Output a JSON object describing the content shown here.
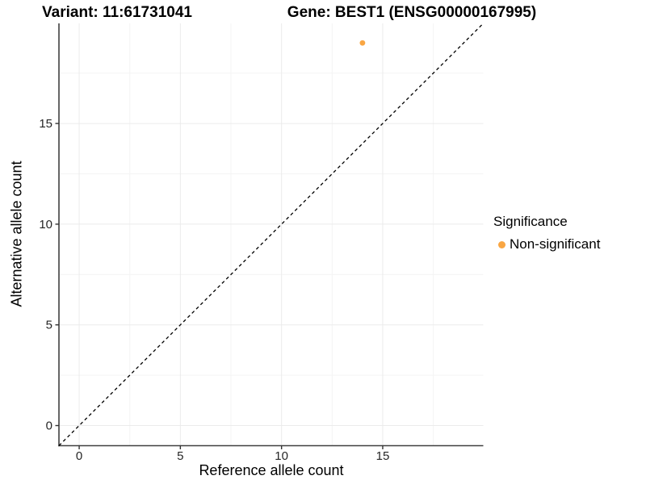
{
  "chart_data": {
    "type": "scatter",
    "title_left": "Variant: 11:61731041",
    "title_right": "Gene: BEST1 (ENSG00000167995)",
    "xlabel": "Reference allele count",
    "ylabel": "Alternative allele count",
    "xlim": [
      -1,
      19.97
    ],
    "ylim": [
      -1,
      19.97
    ],
    "x_ticks": [
      0,
      5,
      10,
      15
    ],
    "y_ticks": [
      0,
      5,
      10,
      15
    ],
    "x_minor_ticks": [
      2.5,
      7.5,
      12.5,
      17.5
    ],
    "y_minor_ticks": [
      2.5,
      7.5,
      12.5,
      17.5
    ],
    "grid": true,
    "abline": {
      "slope": 1,
      "intercept": 0,
      "linetype": "dashed",
      "color": "#000000"
    },
    "series": [
      {
        "name": "Non-significant",
        "color": "#F9A643",
        "points": [
          {
            "x": 14,
            "y": 19
          }
        ]
      }
    ],
    "legend": {
      "title": "Significance",
      "position": "right",
      "entries": [
        {
          "label": "Non-significant",
          "color": "#F9A643"
        }
      ]
    },
    "colors": {
      "background": "#FFFFFF",
      "grid_major": "#EBEBEB",
      "grid_minor": "#F4F4F4",
      "axis_line": "#404040",
      "tick_mark": "#333333",
      "tick_label": "#262626",
      "point": "#F9A643"
    }
  }
}
